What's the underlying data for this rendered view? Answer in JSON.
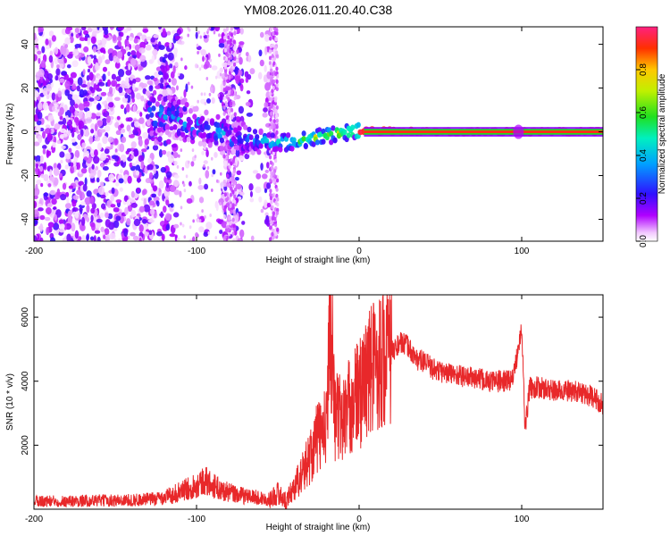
{
  "title": "YM08.2026.011.20.40.C38",
  "chart_data": [
    {
      "type": "heatmap",
      "xlabel": "Height of straight line (km)",
      "ylabel": "Frequency (Hz)",
      "xlim": [
        -200,
        150
      ],
      "ylim": [
        -50,
        48
      ],
      "xticks": [
        -200,
        -100,
        0,
        100
      ],
      "yticks": [
        -40,
        -20,
        0,
        20,
        40
      ],
      "colorbar": {
        "label": "Normalized spectral amplitude",
        "range": [
          0.0,
          1.0
        ],
        "ticks": [
          0.0,
          0.2,
          0.4,
          0.6,
          0.8
        ],
        "colormap": "rainbow (magenta-blue-cyan-green-yellow-red)"
      },
      "ridge": [
        {
          "x": -120,
          "y": 8
        },
        {
          "x": -100,
          "y": 3
        },
        {
          "x": -80,
          "y": -2
        },
        {
          "x": -60,
          "y": -4
        },
        {
          "x": -45,
          "y": -5
        },
        {
          "x": -30,
          "y": -3
        },
        {
          "x": -15,
          "y": -1
        },
        {
          "x": 0,
          "y": 0.5
        },
        {
          "x": 50,
          "y": 0
        },
        {
          "x": 100,
          "y": 0
        },
        {
          "x": 150,
          "y": 0
        }
      ]
    },
    {
      "type": "line",
      "xlabel": "Height of straight line (km)",
      "ylabel": "SNR (10 * v/v)",
      "xlim": [
        -200,
        150
      ],
      "ylim": [
        0,
        6700
      ],
      "xticks": [
        -200,
        -100,
        0,
        100
      ],
      "yticks": [
        2000,
        4000,
        6000
      ],
      "line_color": "#e8282a",
      "series": [
        {
          "name": "SNR",
          "x": [
            -200,
            -180,
            -160,
            -140,
            -125,
            -115,
            -105,
            -95,
            -85,
            -75,
            -65,
            -55,
            -50,
            -45,
            -40,
            -35,
            -30,
            -25,
            -20,
            -18,
            -15,
            -10,
            -5,
            0,
            5,
            10,
            20,
            25,
            30,
            35,
            40,
            45,
            50,
            60,
            70,
            80,
            90,
            95,
            100,
            102,
            105,
            110,
            120,
            130,
            140,
            150
          ],
          "y": [
            250,
            250,
            270,
            280,
            320,
            450,
            650,
            900,
            600,
            450,
            380,
            300,
            500,
            250,
            700,
            1100,
            1700,
            2300,
            2500,
            6700,
            3000,
            2800,
            3300,
            3600,
            4200,
            4600,
            4900,
            5200,
            5100,
            4700,
            4600,
            4400,
            4300,
            4200,
            4100,
            4000,
            4000,
            4100,
            5800,
            2500,
            3800,
            3800,
            3700,
            3700,
            3600,
            3300
          ]
        }
      ]
    }
  ]
}
